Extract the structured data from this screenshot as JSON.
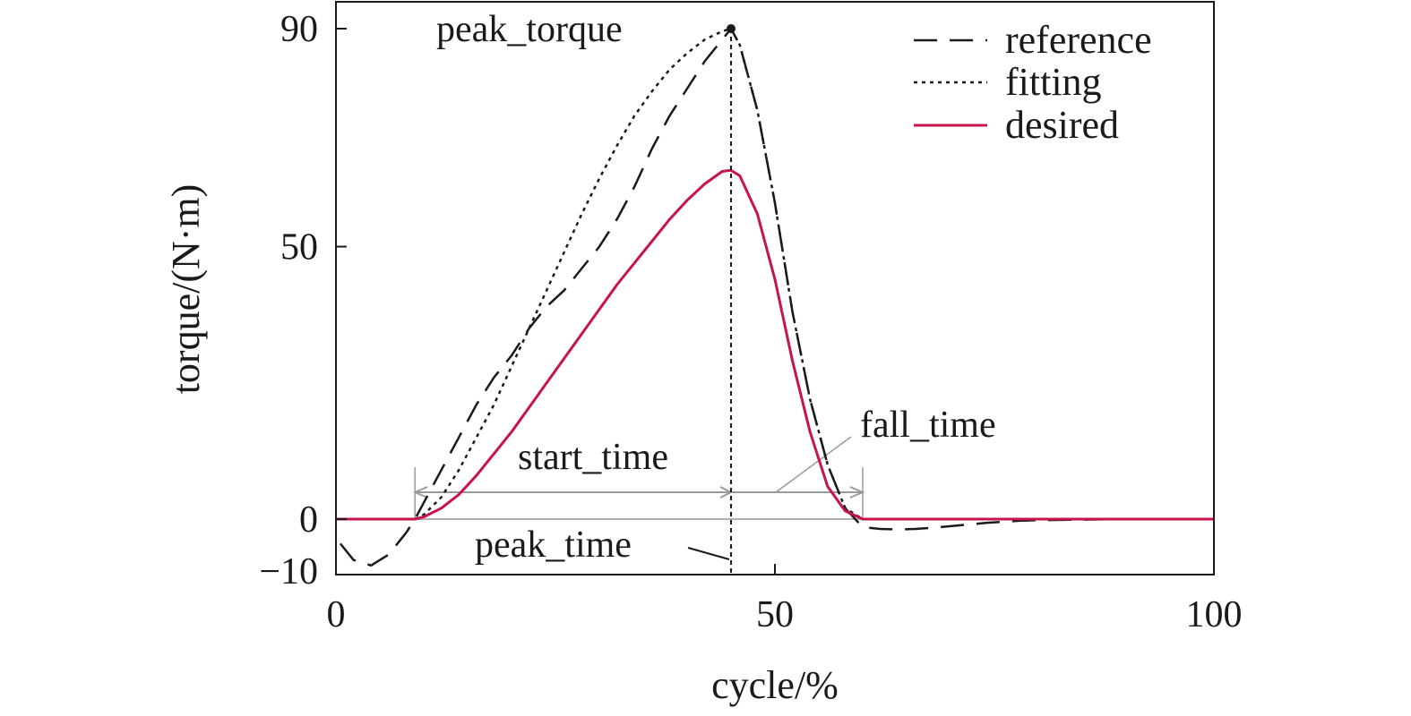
{
  "chart_data": {
    "type": "line",
    "title": "",
    "xlabel": "cycle/%",
    "ylabel": "torque/(N·m)",
    "xlim": [
      0,
      100
    ],
    "ylim": [
      -10,
      100
    ],
    "x_ticks": [
      0,
      50,
      100
    ],
    "y_ticks": [
      -10,
      0,
      50,
      90
    ],
    "x_tick_labels": [
      "0",
      "50",
      "100"
    ],
    "y_tick_labels": [
      "−10",
      "0",
      "50",
      "90"
    ],
    "grid": false,
    "legend_position": "top-right",
    "series": [
      {
        "name": "reference",
        "style": "dashed",
        "color": "#1a1a1a",
        "x": [
          0.5,
          2,
          4,
          6,
          8,
          9,
          10,
          12,
          14,
          16,
          18,
          20,
          22,
          24,
          26,
          28,
          30,
          32,
          34,
          36,
          38,
          40,
          42,
          44,
          45,
          46,
          48,
          50,
          52,
          54,
          56,
          58,
          60,
          62,
          64,
          66,
          68,
          70,
          72,
          74,
          76,
          78,
          80,
          85,
          90,
          95,
          100
        ],
        "y": [
          -4.5,
          -7.5,
          -8.5,
          -6.5,
          -2.5,
          0,
          3,
          9,
          15,
          21,
          26,
          30,
          35,
          39,
          42,
          46,
          50,
          55,
          61,
          68,
          74,
          79,
          84,
          88,
          90,
          87,
          75,
          58,
          38,
          22,
          10,
          2,
          -1.5,
          -1.8,
          -1.9,
          -1.8,
          -1.6,
          -1.3,
          -1,
          -0.7,
          -0.5,
          -0.3,
          -0.2,
          -0.1,
          0,
          0,
          0
        ]
      },
      {
        "name": "fitting",
        "style": "dotted",
        "color": "#1a1a1a",
        "x": [
          9,
          10,
          12,
          14,
          16,
          18,
          20,
          22,
          24,
          26,
          28,
          30,
          32,
          34,
          36,
          38,
          40,
          42,
          44,
          45,
          46,
          48,
          50,
          52,
          54,
          56,
          58,
          60
        ],
        "y": [
          0,
          0.8,
          4,
          9,
          15,
          21,
          28,
          35,
          42,
          49,
          56,
          62.5,
          68.5,
          74,
          78.5,
          82.5,
          85.5,
          88,
          89.5,
          90,
          87,
          75,
          58,
          38,
          22,
          10,
          2,
          0
        ]
      },
      {
        "name": "desired",
        "style": "solid",
        "color": "#c8144d",
        "x": [
          0,
          5,
          9,
          10,
          12,
          14,
          16,
          18,
          20,
          22,
          24,
          26,
          28,
          30,
          32,
          34,
          36,
          38,
          40,
          42,
          44,
          45,
          46,
          48,
          50,
          52,
          54,
          56,
          58,
          60,
          65,
          70,
          80,
          90,
          100
        ],
        "y": [
          0,
          0,
          0,
          0.4,
          2,
          4.5,
          8,
          12,
          16,
          20.5,
          25,
          29.5,
          34,
          38.5,
          43,
          47,
          51,
          55,
          58.5,
          61.5,
          63.8,
          64,
          63,
          56,
          44,
          29,
          16,
          6,
          1.5,
          0,
          0,
          0,
          0,
          0,
          0
        ]
      }
    ],
    "annotations": [
      {
        "text": "peak_torque"
      },
      {
        "text": "start_time"
      },
      {
        "text": "peak_time"
      },
      {
        "text": "fall_time"
      }
    ],
    "markers": {
      "peak": {
        "x": 45,
        "y": 90
      },
      "start_time": 9,
      "peak_time": 45,
      "fall_time": 60
    }
  }
}
